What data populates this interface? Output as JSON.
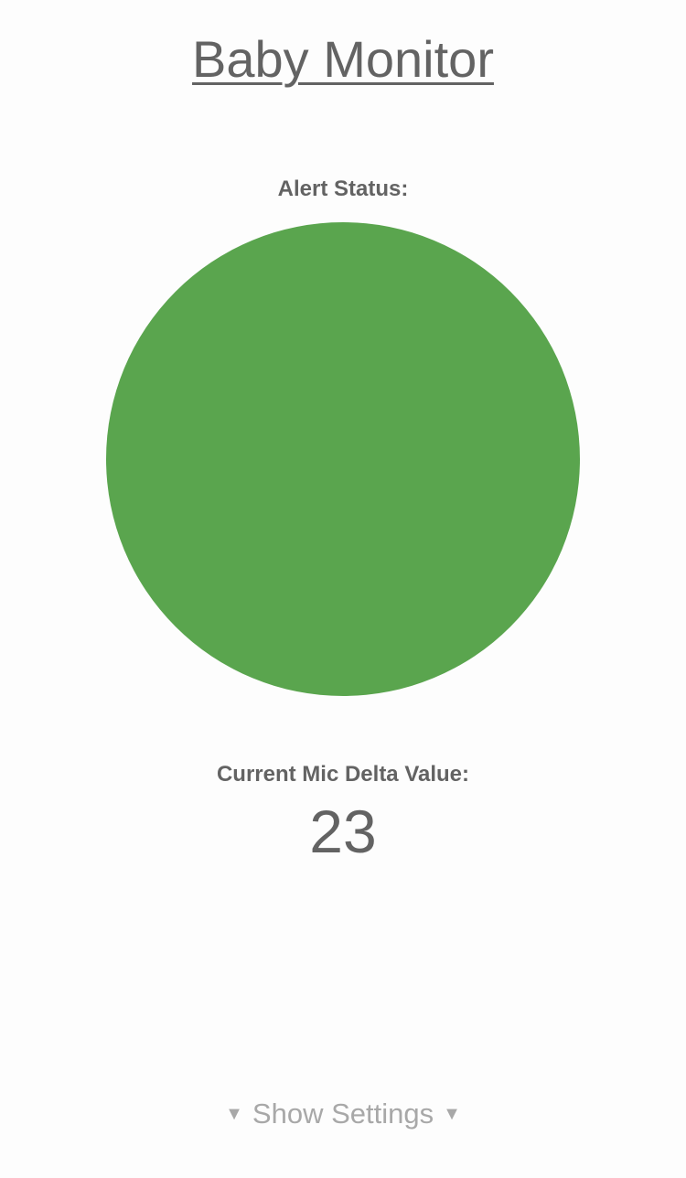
{
  "header": {
    "title": "Baby Monitor"
  },
  "alert": {
    "label": "Alert Status:",
    "status_color": "#5aa54e"
  },
  "mic": {
    "label": "Current Mic Delta Value:",
    "value": "23"
  },
  "settings": {
    "toggle_label": "Show Settings",
    "arrow_icon": "triangle-down-icon",
    "arrow_glyph": "▼"
  }
}
